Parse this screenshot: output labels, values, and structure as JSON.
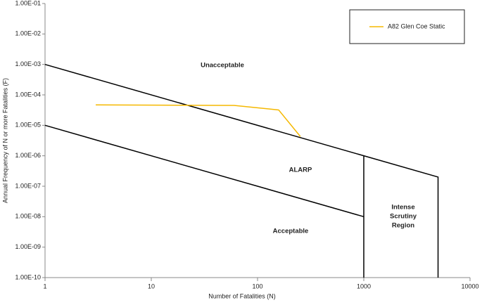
{
  "chart_data": {
    "type": "line",
    "x_label": "Number of Fatalities (N)",
    "y_label": "Annual Frequency of N or more Fatalities (F)",
    "log_x": true,
    "log_y": true,
    "grid": false,
    "legend": "top-right",
    "xlim": [
      1,
      10000
    ],
    "xticks": [
      1,
      10,
      100,
      1000,
      10000
    ],
    "ylim": [
      1e-10,
      0.1
    ],
    "yticks": [
      {
        "value": 1e-10,
        "label": "1.00E-10"
      },
      {
        "value": 1e-09,
        "label": "1.00E-09"
      },
      {
        "value": 1e-08,
        "label": "1.00E-08"
      },
      {
        "value": 1e-07,
        "label": "1.00E-07"
      },
      {
        "value": 1e-06,
        "label": "1.00E-06"
      },
      {
        "value": 1e-05,
        "label": "1.00E-05"
      },
      {
        "value": 0.0001,
        "label": "1.00E-04"
      },
      {
        "value": 0.001,
        "label": "1.00E-03"
      },
      {
        "value": 0.01,
        "label": "1.00E-02"
      },
      {
        "value": 0.1,
        "label": "1.00E-01"
      }
    ],
    "series": [
      {
        "name": "A82 Glen Coe Static",
        "color": "#f5b800",
        "x": [
          3,
          60,
          158,
          253
        ],
        "values": [
          4.7e-05,
          4.5e-05,
          3.2e-05,
          4.3e-06
        ]
      }
    ],
    "boundary_color": "#000000",
    "boundaries": [
      {
        "x": [
          1,
          5000,
          5000
        ],
        "y": [
          0.001,
          2e-07,
          1e-10
        ]
      },
      {
        "x": [
          1,
          1000
        ],
        "y": [
          1e-05,
          1e-08
        ]
      },
      {
        "x": [
          1000,
          1000
        ],
        "y": [
          1e-06,
          1e-10
        ]
      }
    ],
    "annotations": [
      [
        "Unacceptable"
      ],
      [
        "ALARP"
      ],
      [
        "Acceptable"
      ],
      [
        "Intense",
        "Scrutiny",
        "Region"
      ]
    ]
  }
}
